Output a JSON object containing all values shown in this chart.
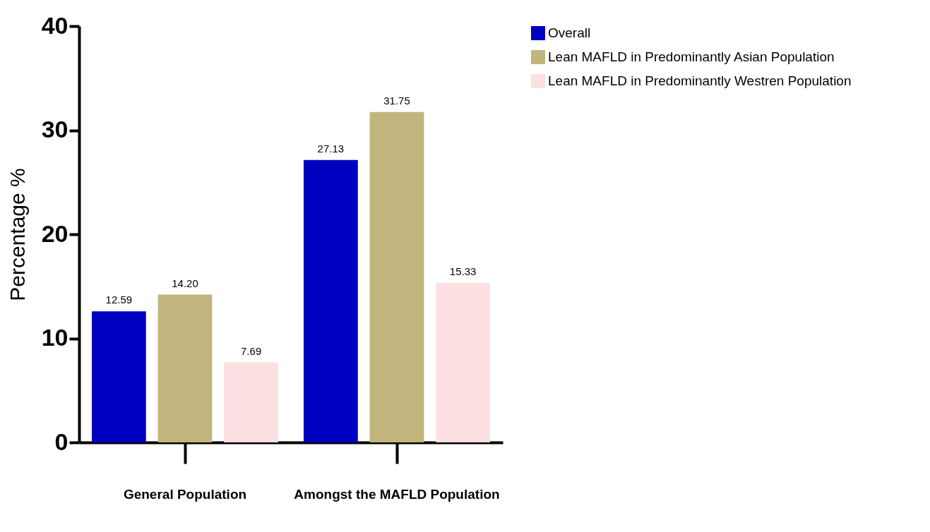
{
  "chart_data": {
    "type": "bar",
    "ylabel": "Percentage %",
    "categories": [
      "General Population",
      "Amongst the MAFLD Population"
    ],
    "series": [
      {
        "name": "Overall",
        "color": "#0000c0",
        "values": [
          12.59,
          27.13
        ],
        "value_labels": [
          "12.59",
          "27.13"
        ]
      },
      {
        "name": "Lean MAFLD in Predominantly Asian Population",
        "color": "#c1b57d",
        "values": [
          14.2,
          31.75
        ],
        "value_labels": [
          "14.20",
          "31.75"
        ]
      },
      {
        "name": "Lean MAFLD in Predominantly Westren Population",
        "color": "#fde0e2",
        "values": [
          7.69,
          15.33
        ],
        "value_labels": [
          "7.69",
          "15.33"
        ]
      }
    ],
    "ylim": [
      0,
      40
    ],
    "yticks": [
      0,
      10,
      20,
      30,
      40
    ],
    "grid": false,
    "legend": "top right"
  }
}
